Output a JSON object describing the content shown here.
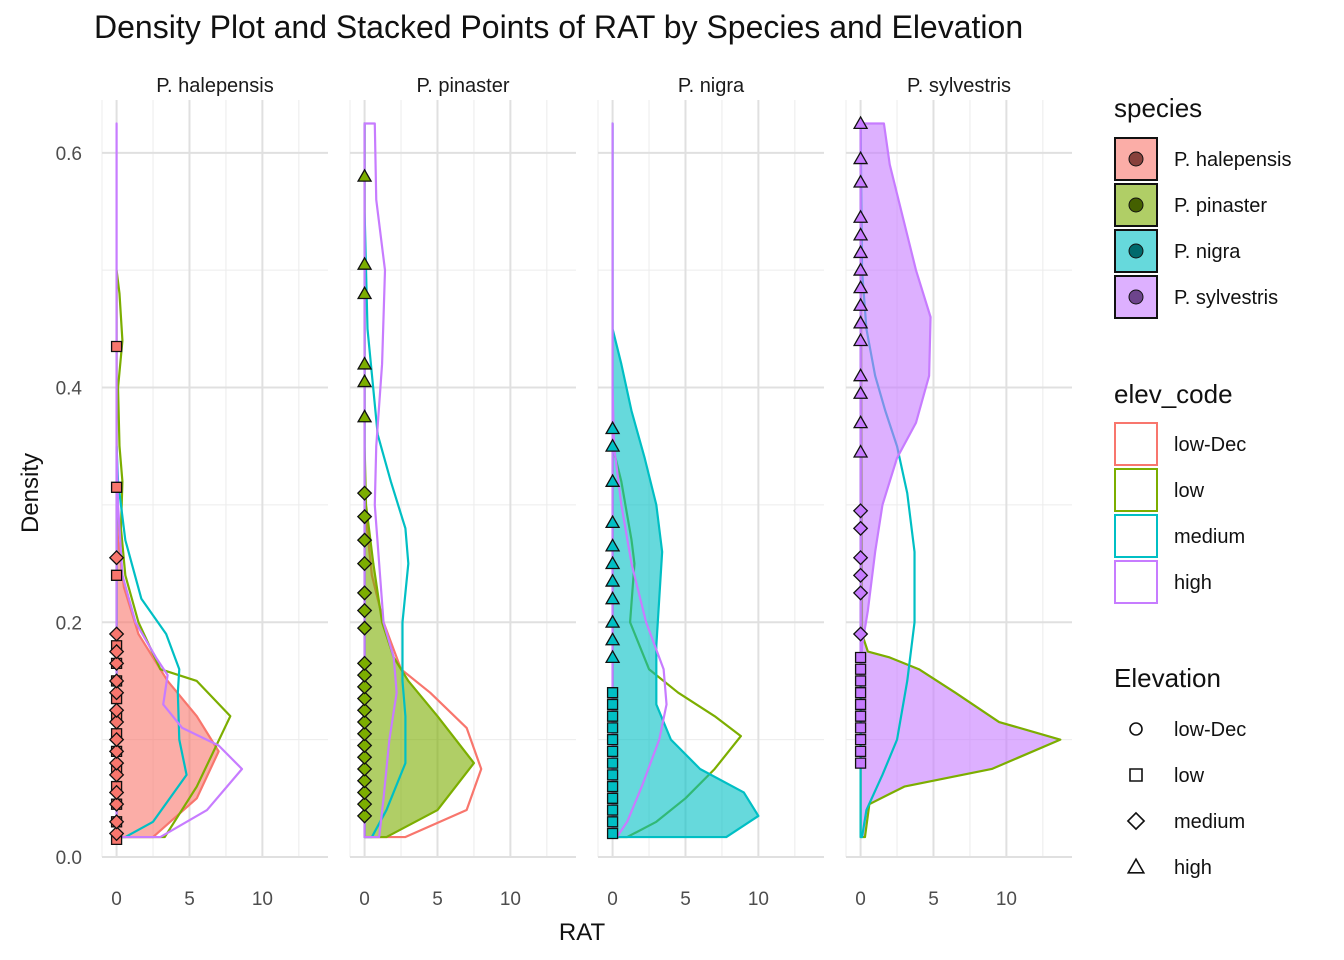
{
  "chart_data": {
    "type": "area",
    "title": "Density Plot and Stacked Points of RAT by Species and Elevation",
    "xlabel": "RAT",
    "ylabel": "Density",
    "orientation": "densities drawn horizontally (value on x, density on y)",
    "xlim": [
      -1,
      14.5
    ],
    "ylim": [
      0,
      0.645
    ],
    "x_ticks": [
      "0",
      "5",
      "10"
    ],
    "y_ticks": [
      "0.0",
      "0.2",
      "0.4",
      "0.6"
    ],
    "grid": true,
    "legend_placement": "right",
    "colors": {
      "P. halepensis": "#F8766D",
      "P. pinaster": "#7CAE00",
      "P. nigra": "#00BFC4",
      "P. sylvestris": "#C77CFF",
      "low-Dec": "#F8766D",
      "low": "#7CAE00",
      "medium": "#00BFC4",
      "high": "#C77CFF"
    },
    "legends": [
      {
        "title": "species",
        "entries": [
          "P. halepensis",
          "P. pinaster",
          "P. nigra",
          "P. sylvestris"
        ]
      },
      {
        "title": "elev_code",
        "entries": [
          "low-Dec",
          "low",
          "medium",
          "high"
        ]
      },
      {
        "title": "Elevation",
        "entries": [
          {
            "label": "low-Dec",
            "shape": "circle"
          },
          {
            "label": "low",
            "shape": "square"
          },
          {
            "label": "medium",
            "shape": "diamond"
          },
          {
            "label": "high",
            "shape": "triangle"
          }
        ]
      }
    ],
    "panels": [
      {
        "label": "P. halepensis",
        "series": [
          {
            "elev_code": "low-Dec",
            "shape": "fill",
            "points": [
              [
                2.5,
                0.017
              ],
              [
                5.5,
                0.05
              ],
              [
                7,
                0.09
              ],
              [
                5.5,
                0.12
              ],
              [
                3.5,
                0.15
              ],
              [
                1.5,
                0.19
              ],
              [
                0.5,
                0.23
              ],
              [
                0.1,
                0.27
              ],
              [
                0,
                0.3
              ]
            ]
          },
          {
            "elev_code": "low",
            "shape": "line",
            "points": [
              [
                3.3,
                0.017
              ],
              [
                5.5,
                0.06
              ],
              [
                7.8,
                0.12
              ],
              [
                5.5,
                0.15
              ],
              [
                3,
                0.16
              ],
              [
                1.5,
                0.2
              ],
              [
                0.6,
                0.24
              ],
              [
                0.3,
                0.28
              ],
              [
                0.4,
                0.32
              ],
              [
                0.2,
                0.35
              ],
              [
                0.1,
                0.4
              ],
              [
                0.4,
                0.44
              ],
              [
                0.2,
                0.48
              ],
              [
                0,
                0.5
              ]
            ]
          },
          {
            "elev_code": "medium",
            "shape": "line",
            "points": [
              [
                0.6,
                0.017
              ],
              [
                2.5,
                0.03
              ],
              [
                4.8,
                0.07
              ],
              [
                4.3,
                0.1
              ],
              [
                4.2,
                0.14
              ],
              [
                4.3,
                0.16
              ],
              [
                3.4,
                0.19
              ],
              [
                1.7,
                0.22
              ],
              [
                0.6,
                0.27
              ],
              [
                0.1,
                0.32
              ],
              [
                0,
                0.35
              ]
            ]
          },
          {
            "elev_code": "high",
            "shape": "line",
            "points": [
              [
                3,
                0.017
              ],
              [
                6.2,
                0.04
              ],
              [
                8.6,
                0.075
              ],
              [
                7,
                0.095
              ],
              [
                4.5,
                0.11
              ],
              [
                3.2,
                0.13
              ],
              [
                3.5,
                0.155
              ],
              [
                2.7,
                0.17
              ],
              [
                1.3,
                0.2
              ],
              [
                0.4,
                0.24
              ],
              [
                0.1,
                0.3
              ],
              [
                0,
                0.35
              ],
              [
                0,
                0.625
              ]
            ]
          }
        ],
        "stacked_points": [
          {
            "shape": "square",
            "x": 0,
            "y": [
              0.015,
              0.03,
              0.045,
              0.06,
              0.075,
              0.09,
              0.105,
              0.12,
              0.135,
              0.15,
              0.165,
              0.18,
              0.24,
              0.315,
              0.435
            ]
          },
          {
            "shape": "diamond",
            "x": 0,
            "y": [
              0.02,
              0.03,
              0.045,
              0.055,
              0.07,
              0.08,
              0.09,
              0.1,
              0.115,
              0.125,
              0.14,
              0.15,
              0.165,
              0.175,
              0.19,
              0.255
            ]
          }
        ]
      },
      {
        "label": "P. pinaster",
        "series": [
          {
            "elev_code": "low-Dec",
            "shape": "line",
            "points": [
              [
                2.8,
                0.017
              ],
              [
                7,
                0.04
              ],
              [
                8,
                0.075
              ],
              [
                7,
                0.11
              ],
              [
                4.5,
                0.14
              ],
              [
                2.5,
                0.16
              ],
              [
                1.3,
                0.2
              ],
              [
                0.5,
                0.24
              ],
              [
                0,
                0.3
              ]
            ]
          },
          {
            "elev_code": "low",
            "shape": "fill",
            "points": [
              [
                1.5,
                0.017
              ],
              [
                5,
                0.04
              ],
              [
                7.5,
                0.08
              ],
              [
                5,
                0.12
              ],
              [
                3,
                0.15
              ],
              [
                2,
                0.17
              ],
              [
                1.2,
                0.2
              ],
              [
                0.6,
                0.25
              ],
              [
                0.1,
                0.3
              ],
              [
                0,
                0.35
              ],
              [
                0,
                0.625
              ]
            ]
          },
          {
            "elev_code": "medium",
            "shape": "line",
            "points": [
              [
                0.5,
                0.017
              ],
              [
                1.5,
                0.04
              ],
              [
                2.8,
                0.08
              ],
              [
                2.8,
                0.12
              ],
              [
                2.6,
                0.15
              ],
              [
                2.6,
                0.2
              ],
              [
                3,
                0.25
              ],
              [
                2.8,
                0.28
              ],
              [
                1.8,
                0.32
              ],
              [
                0.9,
                0.36
              ],
              [
                0.2,
                0.45
              ],
              [
                0,
                0.55
              ],
              [
                0,
                0.625
              ]
            ]
          },
          {
            "elev_code": "high",
            "shape": "line",
            "points": [
              [
                1,
                0.017
              ],
              [
                1.3,
                0.05
              ],
              [
                1.7,
                0.1
              ],
              [
                2.2,
                0.14
              ],
              [
                2,
                0.17
              ],
              [
                1.3,
                0.2
              ],
              [
                0.7,
                0.3
              ],
              [
                0.8,
                0.35
              ],
              [
                1.2,
                0.42
              ],
              [
                1.4,
                0.5
              ],
              [
                0.8,
                0.56
              ],
              [
                0.7,
                0.625
              ]
            ]
          }
        ],
        "stacked_points": [
          {
            "shape": "triangle",
            "x": 0,
            "y": [
              0.58,
              0.505,
              0.48,
              0.42,
              0.405,
              0.375
            ]
          },
          {
            "shape": "diamond",
            "x": 0,
            "y": [
              0.035,
              0.045,
              0.055,
              0.065,
              0.075,
              0.085,
              0.095,
              0.105,
              0.115,
              0.125,
              0.135,
              0.145,
              0.155,
              0.165,
              0.195,
              0.21,
              0.225,
              0.25,
              0.27,
              0.29,
              0.31
            ]
          }
        ]
      },
      {
        "label": "P. nigra",
        "series": [
          {
            "elev_code": "low",
            "shape": "line",
            "points": [
              [
                1,
                0.017
              ],
              [
                3,
                0.03
              ],
              [
                5,
                0.05
              ],
              [
                7,
                0.075
              ],
              [
                8.8,
                0.103
              ],
              [
                7,
                0.12
              ],
              [
                4.5,
                0.14
              ],
              [
                2.5,
                0.16
              ],
              [
                1.2,
                0.2
              ],
              [
                1.5,
                0.25
              ],
              [
                1.3,
                0.27
              ],
              [
                0.6,
                0.32
              ],
              [
                0,
                0.35
              ]
            ]
          },
          {
            "elev_code": "medium",
            "shape": "fill",
            "points": [
              [
                7.8,
                0.017
              ],
              [
                10,
                0.035
              ],
              [
                9,
                0.055
              ],
              [
                6,
                0.075
              ],
              [
                4,
                0.1
              ],
              [
                3,
                0.13
              ],
              [
                3,
                0.18
              ],
              [
                3.2,
                0.22
              ],
              [
                3.4,
                0.26
              ],
              [
                3,
                0.3
              ],
              [
                2.2,
                0.34
              ],
              [
                1.3,
                0.38
              ],
              [
                0.6,
                0.42
              ],
              [
                0,
                0.45
              ],
              [
                0,
                0.625
              ]
            ]
          },
          {
            "elev_code": "high",
            "shape": "line",
            "points": [
              [
                0.3,
                0.017
              ],
              [
                1,
                0.03
              ],
              [
                2,
                0.06
              ],
              [
                3.2,
                0.1
              ],
              [
                3.7,
                0.13
              ],
              [
                3.5,
                0.16
              ],
              [
                2.3,
                0.2
              ],
              [
                1.3,
                0.25
              ],
              [
                0.6,
                0.3
              ],
              [
                0.1,
                0.35
              ],
              [
                0,
                0.4
              ],
              [
                0,
                0.625
              ]
            ]
          }
        ],
        "stacked_points": [
          {
            "shape": "triangle",
            "x": 0,
            "y": [
              0.365,
              0.35,
              0.32,
              0.285,
              0.265,
              0.25,
              0.235,
              0.22,
              0.2,
              0.185,
              0.17
            ]
          },
          {
            "shape": "square",
            "x": 0,
            "y": [
              0.02,
              0.03,
              0.04,
              0.05,
              0.06,
              0.07,
              0.08,
              0.09,
              0.1,
              0.11,
              0.12,
              0.13,
              0.14
            ]
          }
        ]
      },
      {
        "label": "P. sylvestris",
        "series": [
          {
            "elev_code": "low",
            "shape": "fill",
            "points": [
              [
                0.3,
                0.017
              ],
              [
                0.6,
                0.045
              ],
              [
                3,
                0.06
              ],
              [
                9,
                0.075
              ],
              [
                13.7,
                0.1
              ],
              [
                9.5,
                0.115
              ],
              [
                6.5,
                0.14
              ],
              [
                4,
                0.16
              ],
              [
                2,
                0.17
              ],
              [
                0.5,
                0.175
              ],
              [
                0.1,
                0.19
              ],
              [
                0,
                0.625
              ]
            ]
          },
          {
            "elev_code": "medium",
            "shape": "line",
            "points": [
              [
                0.1,
                0.017
              ],
              [
                0.4,
                0.04
              ],
              [
                1.5,
                0.07
              ],
              [
                2.5,
                0.1
              ],
              [
                3.2,
                0.15
              ],
              [
                3.7,
                0.2
              ],
              [
                3.7,
                0.26
              ],
              [
                3.2,
                0.31
              ],
              [
                2.5,
                0.35
              ],
              [
                1.7,
                0.38
              ],
              [
                1,
                0.41
              ],
              [
                0.4,
                0.45
              ],
              [
                0.1,
                0.5
              ],
              [
                0,
                0.625
              ]
            ]
          },
          {
            "elev_code": "high",
            "shape": "fill",
            "points": [
              [
                0,
                0.15
              ],
              [
                0.1,
                0.18
              ],
              [
                0.5,
                0.21
              ],
              [
                1,
                0.26
              ],
              [
                1.5,
                0.3
              ],
              [
                2.5,
                0.34
              ],
              [
                3.8,
                0.37
              ],
              [
                4.7,
                0.41
              ],
              [
                4.8,
                0.46
              ],
              [
                3.8,
                0.5
              ],
              [
                2.8,
                0.55
              ],
              [
                2,
                0.59
              ],
              [
                1.6,
                0.625
              ]
            ]
          }
        ],
        "stacked_points": [
          {
            "shape": "triangle",
            "x": 0,
            "y": [
              0.625,
              0.595,
              0.575,
              0.545,
              0.53,
              0.515,
              0.5,
              0.485,
              0.47,
              0.455,
              0.44,
              0.41,
              0.395,
              0.37,
              0.345
            ]
          },
          {
            "shape": "diamond",
            "x": 0,
            "y": [
              0.295,
              0.28,
              0.255,
              0.24,
              0.225,
              0.19
            ]
          },
          {
            "shape": "square",
            "x": 0,
            "y": [
              0.08,
              0.09,
              0.1,
              0.11,
              0.12,
              0.13,
              0.14,
              0.15,
              0.16,
              0.17
            ]
          }
        ]
      }
    ]
  }
}
